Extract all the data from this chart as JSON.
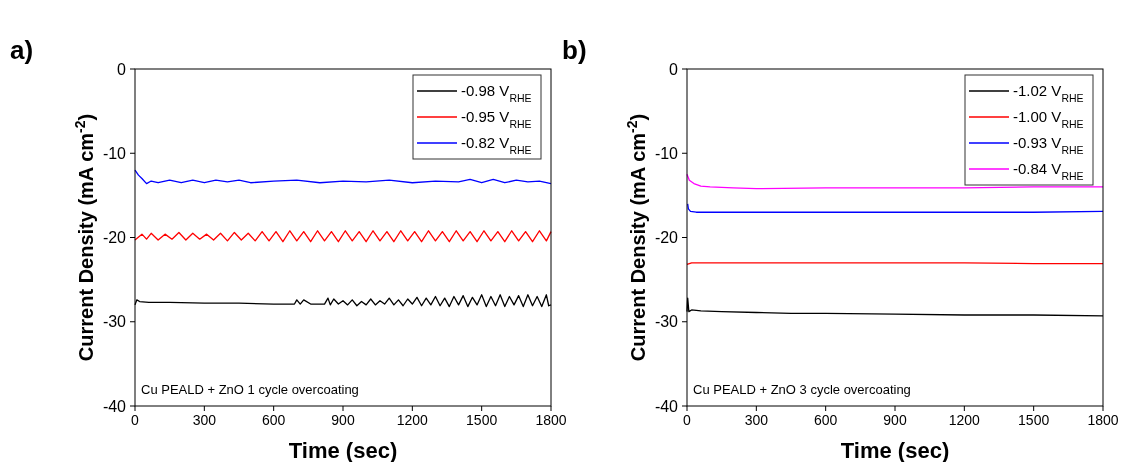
{
  "chart_data": [
    {
      "type": "line",
      "title": "a)",
      "xlabel": "Time (sec)",
      "ylabel": "Current Density (mA cm$^{-2}$)",
      "xlim": [
        0,
        1800
      ],
      "xticks": [
        0,
        300,
        600,
        900,
        1200,
        1500,
        1800
      ],
      "ylim": [
        -40,
        0
      ],
      "yticks": [
        -40,
        -30,
        -20,
        -10,
        0
      ],
      "legend": "top right",
      "annotations": [
        "Cu PEALD + ZnO 1 cycle overcoating"
      ],
      "series": [
        {
          "name": "-0.98 V$_{RHE}$",
          "color": "#000000",
          "x": [
            0,
            8,
            20,
            60,
            150,
            300,
            450,
            600,
            690,
            700,
            715,
            730,
            760,
            820,
            835,
            845,
            860,
            880,
            900,
            920,
            940,
            960,
            980,
            1000,
            1020,
            1040,
            1060,
            1080,
            1100,
            1120,
            1140,
            1160,
            1180,
            1200,
            1220,
            1240,
            1260,
            1280,
            1300,
            1320,
            1340,
            1360,
            1380,
            1400,
            1420,
            1440,
            1460,
            1480,
            1500,
            1520,
            1540,
            1560,
            1580,
            1600,
            1620,
            1640,
            1660,
            1680,
            1700,
            1720,
            1740,
            1760,
            1780,
            1790,
            1800
          ],
          "values": [
            -28.0,
            -27.4,
            -27.6,
            -27.7,
            -27.7,
            -27.8,
            -27.8,
            -27.9,
            -27.9,
            -27.4,
            -27.9,
            -27.4,
            -27.9,
            -27.9,
            -27.2,
            -28.0,
            -27.3,
            -27.9,
            -27.5,
            -28.0,
            -27.4,
            -28.1,
            -27.6,
            -28.0,
            -27.3,
            -28.0,
            -27.5,
            -27.9,
            -27.2,
            -28.0,
            -27.4,
            -28.1,
            -27.3,
            -27.9,
            -27.1,
            -28.1,
            -27.2,
            -28.0,
            -27.0,
            -28.1,
            -27.2,
            -28.2,
            -27.0,
            -28.0,
            -26.9,
            -28.2,
            -27.1,
            -28.0,
            -26.8,
            -28.2,
            -27.0,
            -28.1,
            -26.8,
            -28.2,
            -27.0,
            -28.0,
            -26.9,
            -28.2,
            -26.8,
            -28.1,
            -27.0,
            -28.2,
            -26.8,
            -28.1,
            -28.0
          ]
        },
        {
          "name": "-0.95 V$_{RHE}$",
          "color": "#ff0000",
          "x": [
            0,
            30,
            50,
            70,
            100,
            130,
            160,
            190,
            220,
            250,
            280,
            310,
            340,
            370,
            400,
            430,
            460,
            490,
            520,
            550,
            580,
            610,
            640,
            670,
            700,
            730,
            760,
            790,
            820,
            850,
            880,
            910,
            940,
            970,
            1000,
            1030,
            1060,
            1090,
            1120,
            1150,
            1180,
            1210,
            1240,
            1270,
            1300,
            1330,
            1360,
            1390,
            1420,
            1450,
            1480,
            1510,
            1540,
            1570,
            1600,
            1630,
            1660,
            1690,
            1720,
            1750,
            1780,
            1800
          ],
          "values": [
            -20.3,
            -19.6,
            -20.2,
            -19.5,
            -20.3,
            -19.6,
            -20.2,
            -19.4,
            -20.3,
            -19.5,
            -20.2,
            -19.6,
            -20.3,
            -19.5,
            -20.4,
            -19.4,
            -20.3,
            -19.5,
            -20.4,
            -19.3,
            -20.4,
            -19.3,
            -20.5,
            -19.2,
            -20.4,
            -19.3,
            -20.5,
            -19.2,
            -20.4,
            -19.3,
            -20.5,
            -19.2,
            -20.4,
            -19.3,
            -20.5,
            -19.2,
            -20.4,
            -19.3,
            -20.5,
            -19.2,
            -20.4,
            -19.3,
            -20.5,
            -19.2,
            -20.4,
            -19.3,
            -20.5,
            -19.2,
            -20.4,
            -19.3,
            -20.5,
            -19.2,
            -20.4,
            -19.3,
            -20.5,
            -19.2,
            -20.4,
            -19.3,
            -20.5,
            -19.2,
            -20.4,
            -19.3
          ]
        },
        {
          "name": "-0.82 V$_{RHE}$",
          "color": "#0000ff",
          "x": [
            0,
            15,
            30,
            50,
            70,
            100,
            150,
            200,
            250,
            300,
            350,
            400,
            450,
            500,
            600,
            700,
            800,
            900,
            1000,
            1100,
            1200,
            1300,
            1400,
            1450,
            1500,
            1550,
            1600,
            1650,
            1700,
            1750,
            1800
          ],
          "values": [
            -12.0,
            -12.6,
            -13.0,
            -13.6,
            -13.3,
            -13.5,
            -13.2,
            -13.5,
            -13.2,
            -13.5,
            -13.2,
            -13.4,
            -13.2,
            -13.5,
            -13.3,
            -13.2,
            -13.5,
            -13.3,
            -13.4,
            -13.2,
            -13.5,
            -13.3,
            -13.4,
            -13.1,
            -13.5,
            -13.1,
            -13.5,
            -13.2,
            -13.4,
            -13.3,
            -13.6
          ]
        }
      ]
    },
    {
      "type": "line",
      "title": "b)",
      "xlabel": "Time (sec)",
      "ylabel": "Current Density (mA cm$^{-2}$)",
      "xlim": [
        0,
        1800
      ],
      "xticks": [
        0,
        300,
        600,
        900,
        1200,
        1500,
        1800
      ],
      "ylim": [
        -40,
        0
      ],
      "yticks": [
        -40,
        -30,
        -20,
        -10,
        0
      ],
      "legend": "top right",
      "annotations": [
        "Cu PEALD + ZnO 3 cycle overcoating"
      ],
      "series": [
        {
          "name": "-1.02 V$_{RHE}$",
          "color": "#000000",
          "x": [
            0,
            3,
            8,
            20,
            60,
            150,
            300,
            450,
            600,
            900,
            1200,
            1500,
            1800
          ],
          "values": [
            -28.8,
            -27.2,
            -28.8,
            -28.6,
            -28.7,
            -28.8,
            -28.9,
            -29.0,
            -29.0,
            -29.1,
            -29.2,
            -29.2,
            -29.3
          ]
        },
        {
          "name": "-1.00 V$_{RHE}$",
          "color": "#ff0000",
          "x": [
            0,
            20,
            300,
            600,
            900,
            1200,
            1500,
            1800
          ],
          "values": [
            -23.2,
            -23.0,
            -23.0,
            -23.0,
            -23.0,
            -23.0,
            -23.1,
            -23.1
          ]
        },
        {
          "name": "-0.93 V$_{RHE}$",
          "color": "#0000ff",
          "x": [
            3,
            6,
            15,
            40,
            300,
            600,
            900,
            1200,
            1500,
            1800
          ],
          "values": [
            -16.0,
            -16.6,
            -16.9,
            -17.0,
            -17.0,
            -17.0,
            -17.0,
            -17.0,
            -17.0,
            -16.9
          ]
        },
        {
          "name": "-0.84 V$_{RHE}$",
          "color": "#ff00ff",
          "x": [
            0,
            10,
            30,
            60,
            100,
            200,
            300,
            600,
            900,
            1200,
            1500,
            1800
          ],
          "values": [
            -12.5,
            -13.2,
            -13.6,
            -13.9,
            -14.0,
            -14.1,
            -14.2,
            -14.1,
            -14.1,
            -14.1,
            -14.0,
            -14.0
          ]
        }
      ]
    }
  ]
}
